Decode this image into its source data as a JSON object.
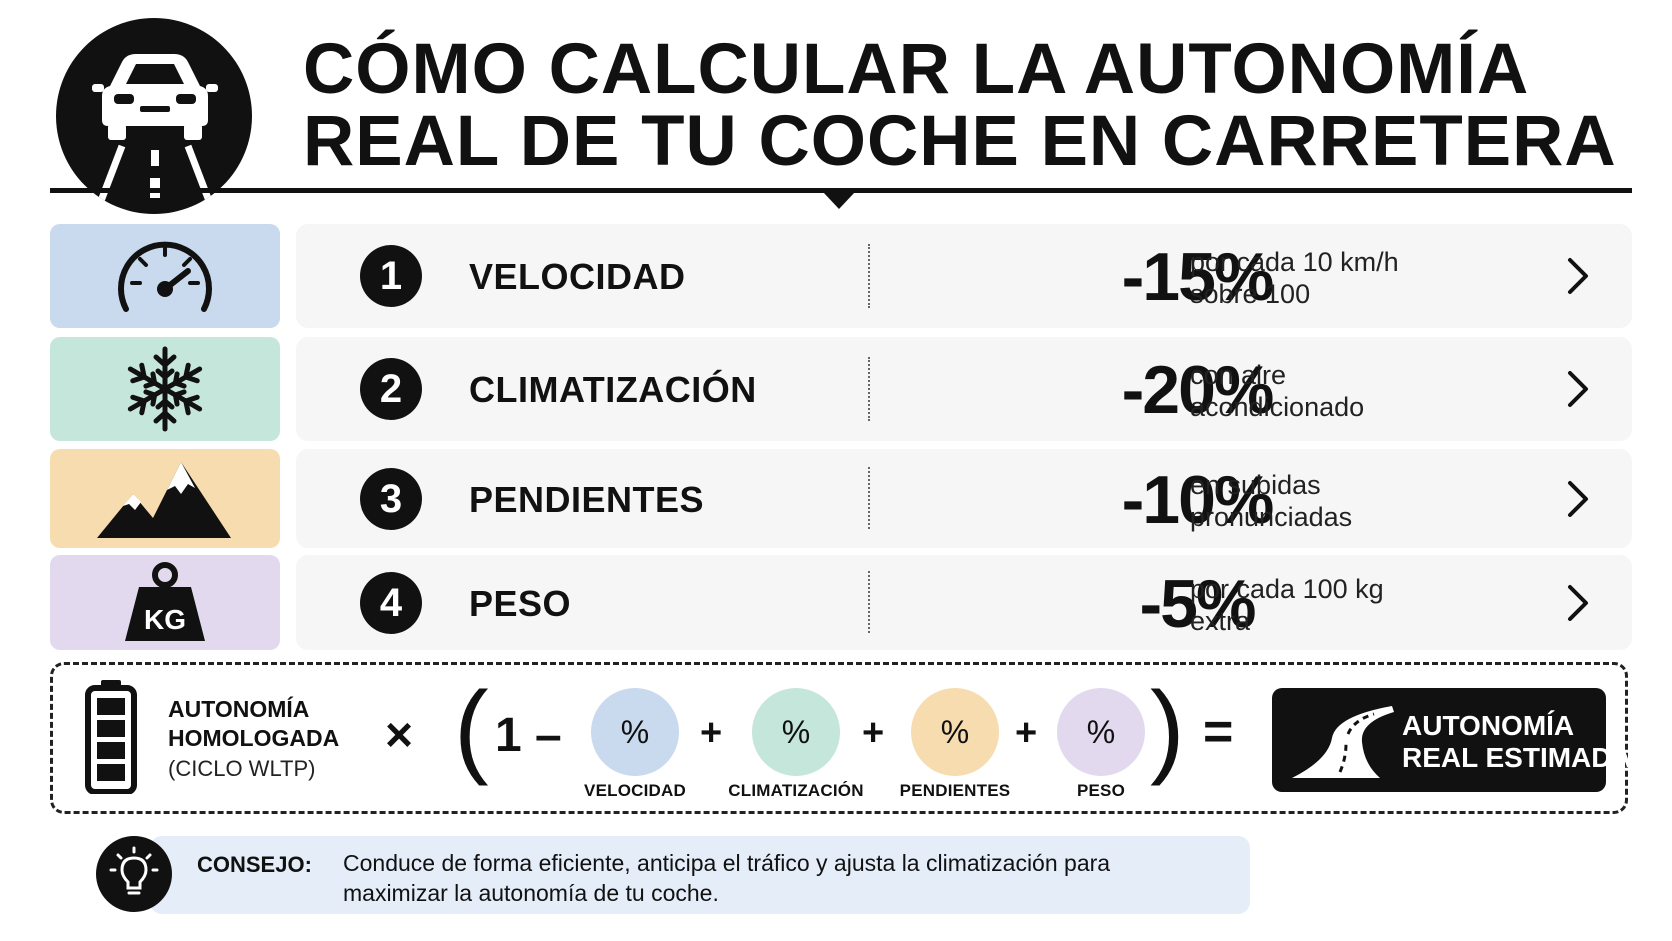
{
  "header": {
    "title_line_1": "CÓMO CALCULAR LA AUTONOMÍA",
    "title_line_2": "REAL DE TU COCHE EN CARRETERA",
    "icon": "car-road-icon"
  },
  "factors": [
    {
      "number": "1",
      "name": "VELOCIDAD",
      "percent": "-15%",
      "desc_line_1": "por cada 10 km/h",
      "desc_line_2": "sobre 100",
      "icon": "speedometer-icon",
      "color": "#c9d9ee"
    },
    {
      "number": "2",
      "name": "CLIMATIZACIÓN",
      "percent": "-20%",
      "desc_line_1": "con aire",
      "desc_line_2": "acondicionado",
      "icon": "snowflake-icon",
      "color": "#c5e6da"
    },
    {
      "number": "3",
      "name": "PENDIENTES",
      "percent": "-10%",
      "desc_line_1": "en subidas",
      "desc_line_2": "pronunciadas",
      "icon": "mountain-icon",
      "color": "#f6dcae"
    },
    {
      "number": "4",
      "name": "PESO",
      "percent": "-5%",
      "desc_line_1": "por cada 100 kg",
      "desc_line_2": "extra",
      "icon": "weight-kg-icon",
      "color": "#e2d9ef"
    }
  ],
  "formula": {
    "base_line_1": "AUTONOMÍA",
    "base_line_2": "HOMOLOGADA",
    "base_line_3": "(CICLO WLTP)",
    "times": "×",
    "open_paren": "(",
    "one_minus": "1 –",
    "plus": "+",
    "close_paren": ")",
    "equals": "=",
    "terms": [
      {
        "symbol": "%",
        "label": "VELOCIDAD",
        "color": "#c9d9ee"
      },
      {
        "symbol": "%",
        "label": "CLIMATIZACIÓN",
        "color": "#c5e6da"
      },
      {
        "symbol": "%",
        "label": "PENDIENTES",
        "color": "#f6dcae"
      },
      {
        "symbol": "%",
        "label": "PESO",
        "color": "#e2d9ef"
      }
    ],
    "result_line_1": "AUTONOMÍA",
    "result_line_2": "REAL ESTIMADA",
    "battery_icon": "battery-icon",
    "road_icon": "road-icon"
  },
  "tip": {
    "label": "CONSEJO:",
    "text_line_1": "Conduce de forma eficiente, anticipa el tráfico y ajusta la climatización para",
    "text_line_2": "maximizar la autonomía de tu coche.",
    "icon": "lightbulb-icon"
  }
}
